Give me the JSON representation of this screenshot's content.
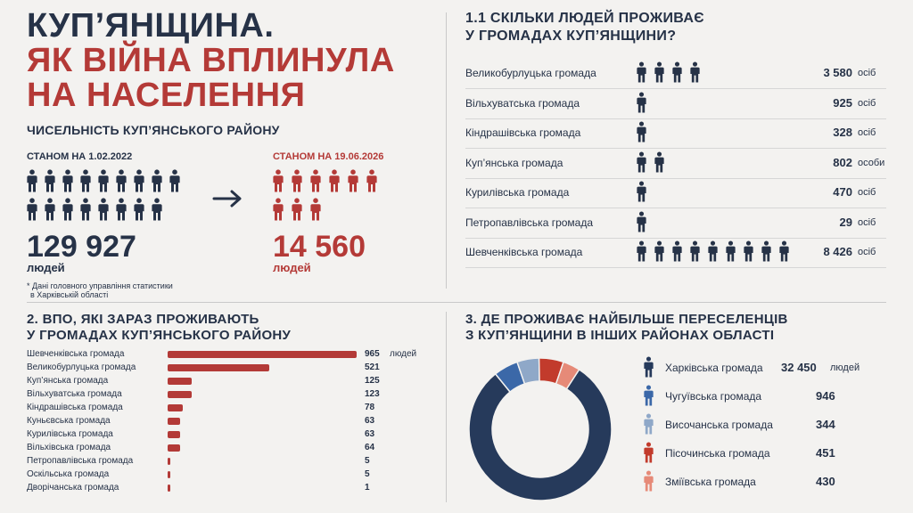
{
  "header": {
    "title_line1": "КУП’ЯНЩИНА.",
    "title_line2": "ЯК ВІЙНА ВПЛИНУЛА",
    "title_line3": "НА НАСЕЛЕННЯ",
    "subtitle": "ЧИСЕЛЬНІСТЬ КУП’ЯНСЬКОГО РАЙОНУ"
  },
  "population": {
    "before": {
      "label": "СТАНОМ НА 1.02.2022",
      "value": "129 927",
      "unit": "людей",
      "icons": 17
    },
    "after": {
      "label": "СТАНОМ НА 19.06.2026",
      "value": "14 560",
      "unit": "людей",
      "icons": 9
    },
    "note_line1": "* Дані головного управління статистики",
    "note_line2": "в Харківській області"
  },
  "section1": {
    "title_line1": "1.1 СКІЛЬКИ ЛЮДЕЙ ПРОЖИВАЄ",
    "title_line2": "У ГРОМАДАХ КУП’ЯНЩИНИ?",
    "rows": [
      {
        "name": "Великобурлуцька громада",
        "icons": 4,
        "value": "3 580",
        "unit": "осіб"
      },
      {
        "name": "Вільхуватська громада",
        "icons": 1,
        "value": "925",
        "unit": "осіб"
      },
      {
        "name": "Кіндрашівська громада",
        "icons": 1,
        "value": "328",
        "unit": "осіб"
      },
      {
        "name": "Куп’янська громада",
        "icons": 2,
        "value": "802",
        "unit": "особи"
      },
      {
        "name": "Курилівська громада",
        "icons": 1,
        "value": "470",
        "unit": "осіб"
      },
      {
        "name": "Петропавлівська громада",
        "icons": 1,
        "value": "29",
        "unit": "осіб"
      },
      {
        "name": "Шевченківська громада",
        "icons": 9,
        "value": "8 426",
        "unit": "осіб"
      }
    ]
  },
  "section2": {
    "title_line1": "2. ВПО, ЯКІ ЗАРАЗ ПРОЖИВАЮТЬ",
    "title_line2": "У ГРОМАДАХ КУП’ЯНСЬКОГО РАЙОНУ",
    "unit": "людей",
    "rows": [
      {
        "name": "Шевченківська громада",
        "value": 965
      },
      {
        "name": "Великобурлуцька громада",
        "value": 521
      },
      {
        "name": "Куп’янська громада",
        "value": 125
      },
      {
        "name": "Вільхуватська громада",
        "value": 123
      },
      {
        "name": "Кіндрашівська громада",
        "value": 78
      },
      {
        "name": "Куньєвська громада",
        "value": 63
      },
      {
        "name": "Курилівська громада",
        "value": 63
      },
      {
        "name": "Вільхівська громада",
        "value": 64
      },
      {
        "name": "Петропавлівська громада",
        "value": 5
      },
      {
        "name": "Оскільська громада",
        "value": 5
      },
      {
        "name": "Дворічанська громада",
        "value": 1
      }
    ]
  },
  "section3": {
    "title_line1": "3. ДЕ ПРОЖИВАЄ НАЙБІЛЬШЕ ПЕРЕСЕЛЕНЦІВ",
    "title_line2": "З КУП’ЯНЩИНИ В ІНШИХ РАЙОНАХ ОБЛАСТІ",
    "unit": "людей",
    "items": [
      {
        "name": "Харківська громада",
        "value": "32 450",
        "num": 32450,
        "color": "#263a5b"
      },
      {
        "name": "Чугуївська громада",
        "value": "946",
        "num": 946,
        "color": "#3b68a8"
      },
      {
        "name": "Височанська громада",
        "value": "344",
        "num": 344,
        "color": "#8fa8c8"
      },
      {
        "name": "Пісочинська громада",
        "value": "451",
        "num": 451,
        "color": "#c23b2c"
      },
      {
        "name": "Зміївська громада",
        "value": "430",
        "num": 430,
        "color": "#e68a78"
      }
    ]
  },
  "colors": {
    "navy": "#263247",
    "red": "#b43a37"
  }
}
